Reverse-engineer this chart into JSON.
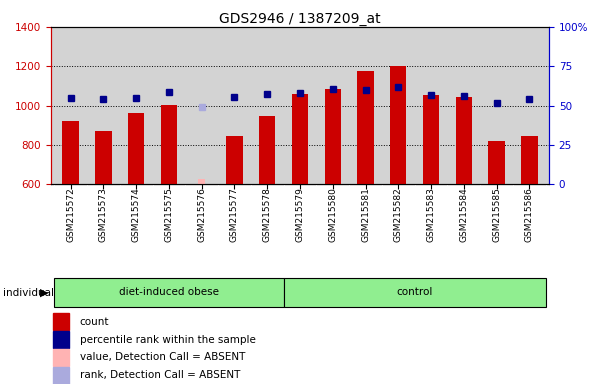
{
  "title": "GDS2946 / 1387209_at",
  "samples": [
    "GSM215572",
    "GSM215573",
    "GSM215574",
    "GSM215575",
    "GSM215576",
    "GSM215577",
    "GSM215578",
    "GSM215579",
    "GSM215580",
    "GSM215581",
    "GSM215582",
    "GSM215583",
    "GSM215584",
    "GSM215585",
    "GSM215586"
  ],
  "counts": [
    920,
    870,
    960,
    1005,
    null,
    845,
    945,
    1060,
    1085,
    1175,
    1200,
    1055,
    1045,
    820,
    848
  ],
  "counts_absent": [
    null,
    null,
    null,
    null,
    625,
    null,
    null,
    null,
    null,
    null,
    null,
    null,
    null,
    null,
    null
  ],
  "ranks": [
    1040,
    1035,
    1038,
    1068,
    null,
    1043,
    1058,
    1062,
    1083,
    1080,
    1095,
    1055,
    1050,
    1015,
    1033
  ],
  "ranks_absent": [
    null,
    null,
    null,
    null,
    993,
    null,
    null,
    null,
    null,
    null,
    null,
    null,
    null,
    null,
    null
  ],
  "ylim_left": [
    600,
    1400
  ],
  "ylim_right": [
    0,
    100
  ],
  "yticks_left": [
    600,
    800,
    1000,
    1200,
    1400
  ],
  "yticks_right": [
    0,
    25,
    50,
    75,
    100
  ],
  "group1_label": "diet-induced obese",
  "group1_indices": [
    0,
    1,
    2,
    3,
    4,
    5,
    6
  ],
  "group2_label": "control",
  "group2_indices": [
    7,
    8,
    9,
    10,
    11,
    12,
    13,
    14
  ],
  "bar_color": "#cc0000",
  "bar_absent_color": "#ffb3b3",
  "rank_color": "#00008b",
  "rank_absent_color": "#aaaadd",
  "plot_bg_color": "#d3d3d3",
  "group_bg_color": "#d3d3d3",
  "group1_color": "#90ee90",
  "group2_color": "#90ee90",
  "left_axis_color": "#cc0000",
  "right_axis_color": "#0000cc",
  "bar_width": 0.5,
  "rank_marker_size": 5,
  "legend_items": [
    {
      "label": "count",
      "color": "#cc0000"
    },
    {
      "label": "percentile rank within the sample",
      "color": "#00008b"
    },
    {
      "label": "value, Detection Call = ABSENT",
      "color": "#ffb3b3"
    },
    {
      "label": "rank, Detection Call = ABSENT",
      "color": "#aaaadd"
    }
  ]
}
